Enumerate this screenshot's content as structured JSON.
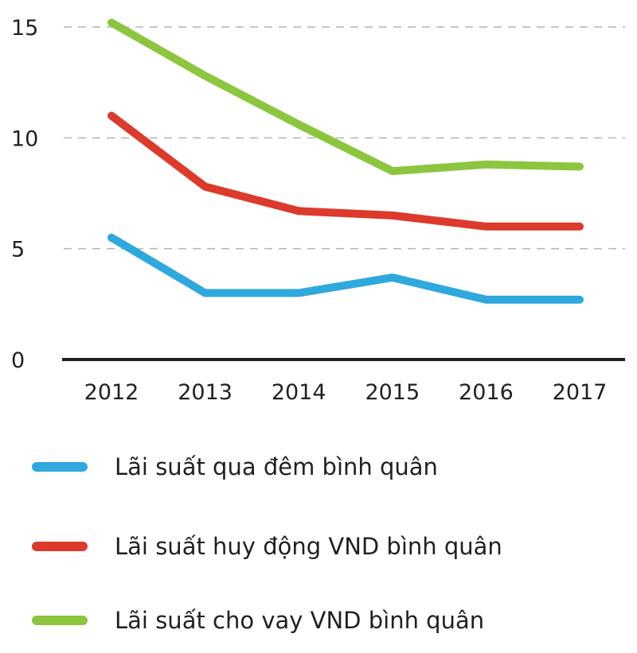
{
  "chart_data": {
    "type": "line",
    "categories": [
      "2012",
      "2013",
      "2014",
      "2015",
      "2016",
      "2017"
    ],
    "ylim": [
      0,
      15
    ],
    "yticks": [
      "0",
      "5",
      "10",
      "15"
    ],
    "grid": true,
    "legend_position": "bottom",
    "series": [
      {
        "name": "Lãi suất qua đêm bình quân",
        "color": "#2fa8de",
        "values": [
          5.5,
          3.0,
          3.0,
          3.7,
          2.7,
          2.7
        ]
      },
      {
        "name": "Lãi suất huy động VND bình quân",
        "color": "#dc3a2b",
        "values": [
          11.0,
          7.8,
          6.7,
          6.5,
          6.0,
          6.0
        ]
      },
      {
        "name": "Lãi suất cho vay VND bình quân",
        "color": "#8cc63f",
        "values": [
          15.2,
          12.8,
          10.6,
          8.5,
          8.8,
          8.7
        ]
      }
    ]
  }
}
